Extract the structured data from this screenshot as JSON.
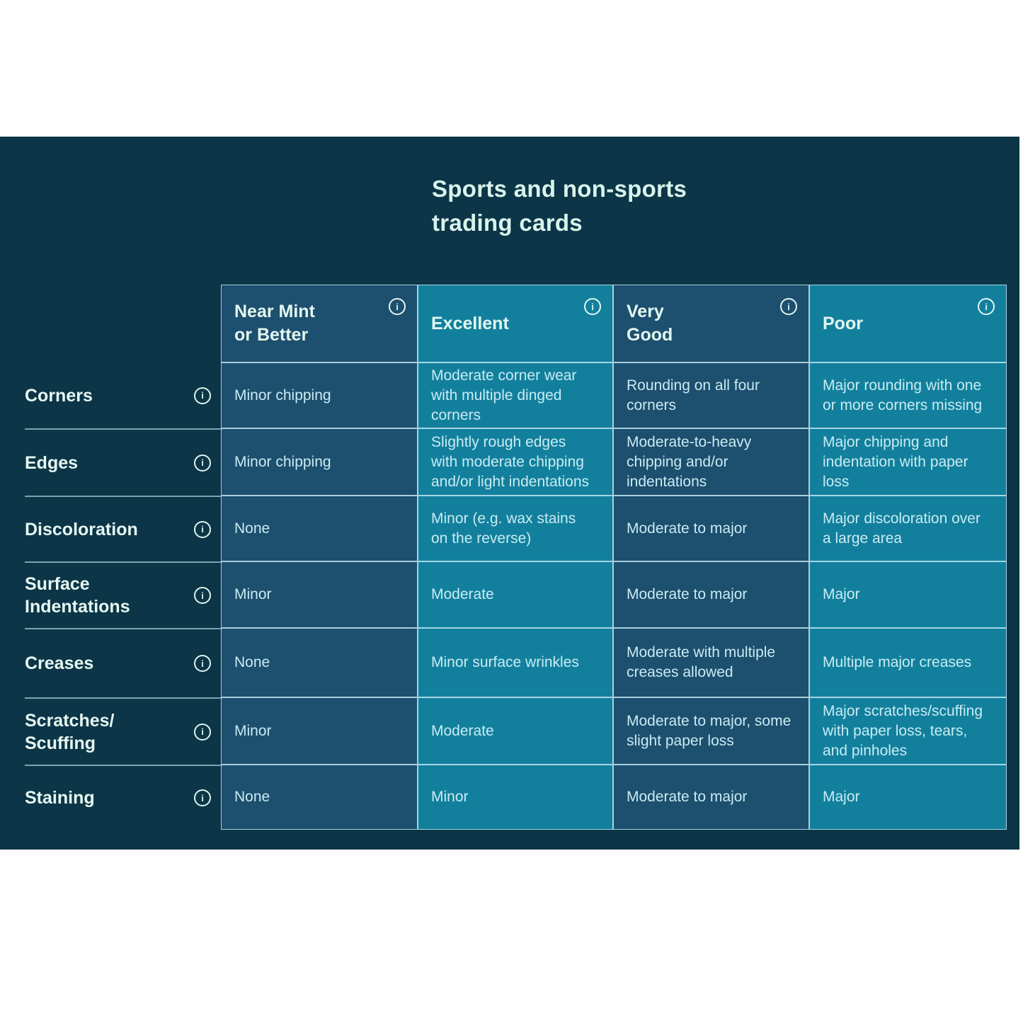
{
  "title": {
    "text": "Sports and non-sports\ntrading cards"
  },
  "colors": {
    "panel_bg": "#0c3547",
    "cell_dark_blue": "#1d4f6e",
    "cell_teal": "#12809d",
    "grid_border": "#c1e5ee",
    "title_text": "#d9f4ec",
    "header_text": "#e4f6f1",
    "cell_text": "#c9ebf3"
  },
  "icons": {
    "info_glyph": "i"
  },
  "table": {
    "columns": [
      {
        "label": "Near Mint\nor Better"
      },
      {
        "label": "Excellent"
      },
      {
        "label": "Very\nGood"
      },
      {
        "label": "Poor"
      }
    ],
    "rows": [
      {
        "label": "Corners",
        "cells": [
          "Minor chipping",
          "Moderate corner wear with multiple dinged corners",
          "Rounding on all four corners",
          "Major rounding with one or more corners missing"
        ]
      },
      {
        "label": "Edges",
        "cells": [
          "Minor chipping",
          "Slightly rough edges with moderate chipping and/or light indentations",
          "Moderate-to-heavy chipping and/or indentations",
          "Major chipping and indentation with paper loss"
        ]
      },
      {
        "label": "Discoloration",
        "cells": [
          "None",
          "Minor (e.g. wax stains on the reverse)",
          "Moderate to major",
          "Major discoloration over a large area"
        ]
      },
      {
        "label": "Surface\nIndentations",
        "cells": [
          "Minor",
          "Moderate",
          "Moderate to major",
          "Major"
        ]
      },
      {
        "label": "Creases",
        "cells": [
          "None",
          "Minor surface wrinkles",
          "Moderate with multiple creases allowed",
          "Multiple major creases"
        ]
      },
      {
        "label": "Scratches/\nScuffing",
        "cells": [
          "Minor",
          "Moderate",
          "Moderate to major, some slight paper loss",
          "Major scratches/scuffing with paper loss, tears, and pinholes"
        ]
      },
      {
        "label": "Staining",
        "cells": [
          "None",
          "Minor",
          "Moderate to major",
          "Major"
        ]
      }
    ]
  }
}
